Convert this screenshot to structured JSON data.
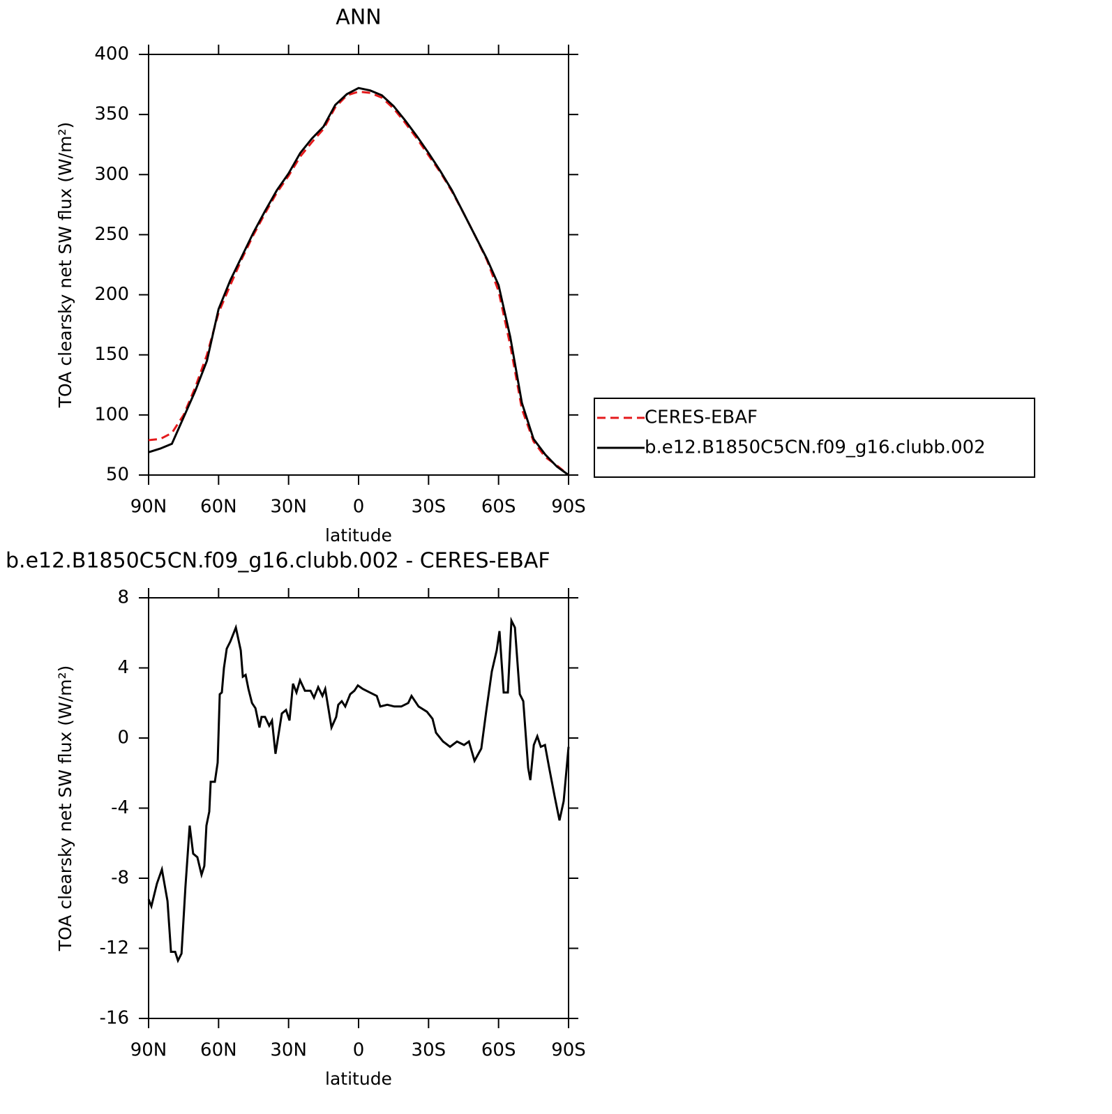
{
  "chart_data": [
    {
      "type": "line",
      "title": "ANN",
      "xlabel": "latitude",
      "ylabel": "TOA clearsky net SW flux (W/m²)",
      "xlim": [
        90,
        -90
      ],
      "xticks": [
        {
          "value": 90,
          "label": "90N"
        },
        {
          "value": 60,
          "label": "60N"
        },
        {
          "value": 30,
          "label": "30N"
        },
        0,
        {
          "value": -30,
          "label": "30S"
        },
        {
          "value": -60,
          "label": "60S"
        },
        {
          "value": -90,
          "label": "90S"
        }
      ],
      "ylim": [
        50,
        400
      ],
      "yticks": [
        50,
        100,
        150,
        200,
        250,
        300,
        350,
        400
      ],
      "legend": "outside-right",
      "x": [
        90,
        85,
        80,
        75,
        70,
        65,
        60,
        55,
        50,
        45,
        40,
        35,
        30,
        25,
        20,
        15,
        10,
        5,
        0,
        -5,
        -10,
        -15,
        -20,
        -25,
        -30,
        -35,
        -40,
        -45,
        -50,
        -55,
        -60,
        -65,
        -70,
        -75,
        -80,
        -85,
        -90
      ],
      "series": [
        {
          "name": "CERES-EBAF",
          "color": "#e41a1c",
          "line_style": "dashed",
          "values": [
            79,
            80,
            85,
            100,
            123,
            150,
            185,
            208,
            230,
            250,
            268,
            285,
            299,
            315,
            327,
            338,
            356,
            366,
            369,
            368,
            364,
            355,
            343,
            330,
            316,
            302,
            286,
            268,
            249,
            229,
            203,
            158,
            105,
            78,
            65,
            58,
            50
          ]
        },
        {
          "name": "b.e12.B1850C5CN.f09_g16.clubb.002",
          "color": "#000000",
          "line_style": "solid",
          "values": [
            69,
            72,
            76,
            98,
            120,
            145,
            188,
            212,
            232,
            252,
            270,
            287,
            301,
            318,
            330,
            340,
            358,
            367,
            372,
            370,
            366,
            357,
            345,
            332,
            318,
            303,
            287,
            268,
            249,
            230,
            208,
            165,
            110,
            80,
            67,
            57,
            50
          ]
        }
      ]
    },
    {
      "type": "line",
      "title": "b.e12.B1850C5CN.f09_g16.clubb.002 - CERES-EBAF",
      "xlabel": "latitude",
      "ylabel": "TOA clearsky net SW flux (W/m²)",
      "xlim": [
        90,
        -90
      ],
      "xticks": [
        {
          "value": 90,
          "label": "90N"
        },
        {
          "value": 60,
          "label": "60N"
        },
        {
          "value": 30,
          "label": "30N"
        },
        0,
        {
          "value": -30,
          "label": "30S"
        },
        {
          "value": -60,
          "label": "60S"
        },
        {
          "value": -90,
          "label": "90S"
        }
      ],
      "ylim": [
        -16,
        8
      ],
      "yticks": [
        -16,
        -12,
        -8,
        -4,
        0,
        4,
        8
      ],
      "x": [
        90,
        88.8,
        86.4,
        84.3,
        81.9,
        80.4,
        78.6,
        77.4,
        75.9,
        74.2,
        72.4,
        70.9,
        69.1,
        67.3,
        66.1,
        65.2,
        64.0,
        63.4,
        61.6,
        60.4,
        59.5,
        58.6,
        57.7,
        56.5,
        55.0,
        52.6,
        50.5,
        49.6,
        48.4,
        47.2,
        45.7,
        44.2,
        42.5,
        41.6,
        40.1,
        38.3,
        37.1,
        35.6,
        32.9,
        31.1,
        29.6,
        28.1,
        26.6,
        25.1,
        23.0,
        20.6,
        19.1,
        17.3,
        15.5,
        14.3,
        11.6,
        9.6,
        8.7,
        7.2,
        5.7,
        3.6,
        1.8,
        0.3,
        -1.8,
        -4.8,
        -7.8,
        -9.3,
        -12.3,
        -15.3,
        -18.3,
        -21.3,
        -22.7,
        -25.7,
        -29.3,
        -31.7,
        -33.2,
        -36.2,
        -39.2,
        -42.2,
        -45.2,
        -47.3,
        -49.7,
        -52.6,
        -54.7,
        -57.1,
        -59.2,
        -60.4,
        -62.2,
        -64.0,
        -65.5,
        -67.0,
        -69.1,
        -70.6,
        -72.7,
        -73.6,
        -75.1,
        -76.6,
        -78.1,
        -79.9,
        -81.7,
        -84.0,
        -86.1,
        -87.9,
        -90
      ],
      "series": [
        {
          "color": "#000000",
          "line_style": "solid",
          "values": [
            -9.2,
            -9.6,
            -8.3,
            -7.5,
            -9.3,
            -12.2,
            -12.2,
            -12.7,
            -12.3,
            -8.5,
            -5.0,
            -6.6,
            -6.8,
            -7.8,
            -7.3,
            -5.0,
            -4.2,
            -2.5,
            -2.5,
            -1.4,
            2.5,
            2.6,
            4.0,
            5.1,
            5.5,
            6.3,
            5.0,
            3.5,
            3.6,
            2.8,
            2.0,
            1.7,
            0.6,
            1.2,
            1.2,
            0.7,
            1.0,
            -0.9,
            1.4,
            1.6,
            1.0,
            3.1,
            2.6,
            3.3,
            2.7,
            2.7,
            2.3,
            2.9,
            2.4,
            2.8,
            0.6,
            1.2,
            1.9,
            2.1,
            1.8,
            2.5,
            2.7,
            3.0,
            2.8,
            2.6,
            2.4,
            1.8,
            1.9,
            1.8,
            1.8,
            2.0,
            2.4,
            1.8,
            1.5,
            1.1,
            0.3,
            -0.2,
            -0.5,
            -0.2,
            -0.4,
            -0.2,
            -1.3,
            -0.6,
            1.5,
            3.8,
            5.0,
            6.1,
            2.6,
            2.6,
            6.7,
            6.3,
            2.5,
            2.1,
            -1.7,
            -2.4,
            -0.4,
            0.1,
            -0.5,
            -0.4,
            -1.7,
            -3.3,
            -4.7,
            -3.6,
            -0.5
          ]
        }
      ]
    }
  ]
}
